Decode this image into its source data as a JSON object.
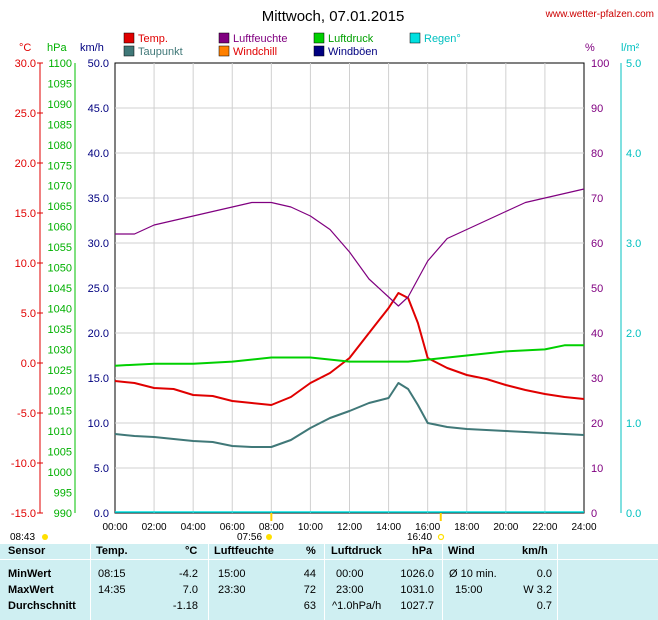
{
  "title": "Mittwoch, 07.01.2015",
  "source": "www.wetter-pfalzen.com",
  "legend": [
    {
      "label": "Temp.",
      "color": "#e00000"
    },
    {
      "label": "Luftfeuchte",
      "color": "#800080"
    },
    {
      "label": "Luftdruck",
      "color": "#00d000"
    },
    {
      "label": "Regen°",
      "color": "#00e0e0"
    },
    {
      "label": "Taupunkt",
      "color": "#407878"
    },
    {
      "label": "Windchill",
      "color": "#ff8000"
    },
    {
      "label": "Windböen",
      "color": "#000080"
    }
  ],
  "axis_units": {
    "temp": "°C",
    "pressure": "hPa",
    "wind": "km/h",
    "humidity": "%",
    "rain": "l/m²"
  },
  "sun": {
    "sunrise": "08:43",
    "noon": "07:56",
    "sunset": "16:40"
  },
  "chart_data": {
    "type": "line",
    "x_ticks": [
      "00:00",
      "02:00",
      "04:00",
      "06:00",
      "08:00",
      "10:00",
      "12:00",
      "14:00",
      "16:00",
      "18:00",
      "20:00",
      "22:00",
      "24:00"
    ],
    "axes": {
      "temp": {
        "range": [
          -15,
          30
        ],
        "ticks": [
          "30.0",
          "25.0",
          "20.0",
          "15.0",
          "10.0",
          "5.0",
          "0.0",
          "-5.0",
          "-10.0",
          "-15.0"
        ]
      },
      "pressure": {
        "range": [
          990,
          1100
        ],
        "ticks": [
          "1100",
          "1095",
          "1090",
          "1085",
          "1080",
          "1075",
          "1070",
          "1065",
          "1060",
          "1055",
          "1050",
          "1045",
          "1040",
          "1035",
          "1030",
          "1025",
          "1020",
          "1015",
          "1010",
          "1005",
          "1000",
          "995",
          "990"
        ]
      },
      "wind": {
        "range": [
          0,
          50
        ],
        "ticks": [
          "50.0",
          "45.0",
          "40.0",
          "35.0",
          "30.0",
          "25.0",
          "20.0",
          "15.0",
          "10.0",
          "5.0",
          "0.0"
        ]
      },
      "humidity": {
        "range": [
          0,
          100
        ],
        "ticks": [
          "100",
          "90",
          "80",
          "70",
          "60",
          "50",
          "40",
          "30",
          "20",
          "10",
          "0"
        ]
      },
      "rain": {
        "range": [
          0,
          5
        ],
        "ticks": [
          "5.0",
          "4.0",
          "3.0",
          "2.0",
          "1.0",
          "0.0"
        ]
      }
    },
    "series": [
      {
        "name": "Temp.",
        "axis": "temp",
        "color": "#e00000",
        "x": [
          0,
          1,
          2,
          3,
          4,
          5,
          6,
          7,
          8,
          9,
          10,
          11,
          12,
          13,
          14,
          14.5,
          15,
          15.5,
          16,
          17,
          18,
          19,
          20,
          21,
          22,
          23,
          24
        ],
        "y": [
          -1.8,
          -2.0,
          -2.5,
          -2.6,
          -3.2,
          -3.3,
          -3.8,
          -4.0,
          -4.2,
          -3.4,
          -2.0,
          -1.0,
          0.5,
          3.0,
          5.5,
          7.0,
          6.5,
          4.0,
          0.5,
          -0.5,
          -1.2,
          -1.6,
          -2.2,
          -2.7,
          -3.1,
          -3.4,
          -3.6
        ]
      },
      {
        "name": "Taupunkt",
        "axis": "temp",
        "color": "#407878",
        "x": [
          0,
          1,
          2,
          3,
          4,
          5,
          6,
          7,
          8,
          9,
          10,
          11,
          12,
          13,
          14,
          14.5,
          15,
          15.5,
          16,
          17,
          18,
          19,
          20,
          21,
          22,
          23,
          24
        ],
        "y": [
          -7.1,
          -7.3,
          -7.4,
          -7.6,
          -7.8,
          -7.9,
          -8.3,
          -8.4,
          -8.4,
          -7.7,
          -6.5,
          -5.5,
          -4.8,
          -4.0,
          -3.5,
          -2.0,
          -2.6,
          -4.2,
          -6.0,
          -6.4,
          -6.6,
          -6.7,
          -6.8,
          -6.9,
          -7.0,
          -7.1,
          -7.2
        ]
      },
      {
        "name": "Luftfeuchte",
        "axis": "humidity",
        "color": "#800080",
        "x": [
          0,
          1,
          2,
          3,
          4,
          5,
          6,
          7,
          8,
          9,
          10,
          11,
          12,
          13,
          14,
          14.5,
          15,
          15.5,
          16,
          17,
          18,
          19,
          20,
          21,
          22,
          23,
          24
        ],
        "y": [
          62,
          62,
          64,
          65,
          66,
          67,
          68,
          69,
          69,
          68,
          66,
          63,
          58,
          52,
          48,
          46,
          48,
          52,
          56,
          61,
          63,
          65,
          67,
          69,
          70,
          71,
          72
        ]
      },
      {
        "name": "Luftdruck",
        "axis": "pressure",
        "color": "#00d000",
        "x": [
          0,
          2,
          4,
          6,
          8,
          10,
          12,
          14,
          15,
          16,
          18,
          20,
          22,
          23,
          24
        ],
        "y": [
          1026.0,
          1026.5,
          1026.5,
          1027.0,
          1028.0,
          1028.0,
          1027.0,
          1027.0,
          1027.0,
          1027.5,
          1028.5,
          1029.5,
          1030.0,
          1031.0,
          1031.0
        ]
      }
    ]
  },
  "stats": {
    "headers": {
      "sensor": "Sensor",
      "temp": "Temp.",
      "temp_unit": "°C",
      "humidity": "Luftfeuchte",
      "humidity_unit": "%",
      "pressure": "Luftdruck",
      "pressure_unit": "hPa",
      "wind": "Wind",
      "wind_unit": "km/h"
    },
    "rows": [
      {
        "label": "MinWert",
        "temp_time": "08:15",
        "temp_val": "-4.2",
        "hum_time": "15:00",
        "hum_val": "44",
        "pres_time": "00:00",
        "pres_val": "1026.0",
        "wind_time": "Ø 10 min.",
        "wind_val": "0.0"
      },
      {
        "label": "MaxWert",
        "temp_time": "14:35",
        "temp_val": "7.0",
        "hum_time": "23:30",
        "hum_val": "72",
        "pres_time": "23:00",
        "pres_val": "1031.0",
        "wind_time": "15:00",
        "wind_val": "W 3.2"
      },
      {
        "label": "Durchschnitt",
        "temp_time": "",
        "temp_val": "-1.18",
        "hum_time": "",
        "hum_val": "63",
        "pres_time": "^1.0hPa/h",
        "pres_val": "1027.7",
        "wind_time": "",
        "wind_val": "0.7"
      }
    ]
  }
}
